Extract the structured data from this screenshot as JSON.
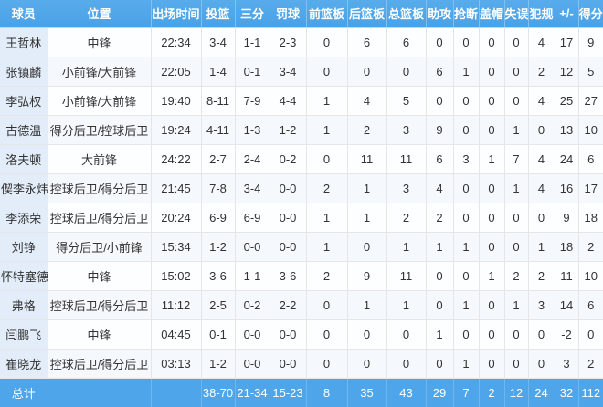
{
  "chart_data": {
    "type": "table",
    "columns": [
      "球员",
      "位置",
      "出场时间",
      "投篮",
      "三分",
      "罚球",
      "前篮板",
      "后篮板",
      "总篮板",
      "助攻",
      "抢断",
      "盖帽",
      "失误",
      "犯规",
      "+/-",
      "得分"
    ],
    "rows": [
      [
        "王哲林",
        "中锋",
        "22:34",
        "3-4",
        "1-1",
        "2-3",
        "0",
        "6",
        "6",
        "0",
        "0",
        "0",
        "0",
        "4",
        "17",
        "9"
      ],
      [
        "张镇麟",
        "小前锋/大前锋",
        "22:05",
        "1-4",
        "0-1",
        "3-4",
        "0",
        "0",
        "0",
        "6",
        "1",
        "0",
        "0",
        "2",
        "12",
        "5"
      ],
      [
        "李弘权",
        "小前锋/大前锋",
        "19:40",
        "8-11",
        "7-9",
        "4-4",
        "1",
        "4",
        "5",
        "0",
        "0",
        "0",
        "0",
        "4",
        "25",
        "27"
      ],
      [
        "古德温",
        "得分后卫/控球后卫",
        "19:24",
        "4-11",
        "1-3",
        "1-2",
        "1",
        "2",
        "3",
        "9",
        "0",
        "0",
        "1",
        "0",
        "13",
        "10"
      ],
      [
        "洛夫顿",
        "大前锋",
        "24:22",
        "2-7",
        "2-4",
        "0-2",
        "0",
        "11",
        "11",
        "6",
        "3",
        "1",
        "7",
        "4",
        "24",
        "6"
      ],
      [
        "偰李永炜",
        "控球后卫/得分后卫",
        "21:45",
        "7-8",
        "3-4",
        "0-0",
        "2",
        "1",
        "3",
        "4",
        "0",
        "0",
        "1",
        "4",
        "16",
        "17"
      ],
      [
        "李添荣",
        "控球后卫/得分后卫",
        "20:24",
        "6-9",
        "6-9",
        "0-0",
        "1",
        "1",
        "2",
        "2",
        "0",
        "0",
        "0",
        "0",
        "9",
        "18"
      ],
      [
        "刘铮",
        "得分后卫/小前锋",
        "15:34",
        "1-2",
        "0-0",
        "0-0",
        "1",
        "0",
        "1",
        "1",
        "1",
        "0",
        "0",
        "1",
        "18",
        "2"
      ],
      [
        "怀特塞德",
        "中锋",
        "15:02",
        "3-6",
        "1-1",
        "3-6",
        "2",
        "9",
        "11",
        "0",
        "0",
        "1",
        "2",
        "2",
        "11",
        "10"
      ],
      [
        "弗格",
        "控球后卫/得分后卫",
        "11:12",
        "2-5",
        "0-2",
        "2-2",
        "0",
        "1",
        "1",
        "0",
        "1",
        "0",
        "1",
        "3",
        "14",
        "6"
      ],
      [
        "闫鹏飞",
        "中锋",
        "04:45",
        "0-1",
        "0-0",
        "0-0",
        "0",
        "0",
        "0",
        "1",
        "0",
        "0",
        "0",
        "0",
        "-2",
        "0"
      ],
      [
        "崔晓龙",
        "控球后卫/得分后卫",
        "03:13",
        "1-2",
        "0-0",
        "0-0",
        "0",
        "0",
        "0",
        "0",
        "1",
        "0",
        "0",
        "0",
        "3",
        "2"
      ]
    ],
    "totals": [
      "总计",
      "",
      "",
      "38-70",
      "21-34",
      "15-23",
      "8",
      "35",
      "43",
      "29",
      "7",
      "2",
      "12",
      "24",
      "32",
      "112"
    ]
  },
  "colors": {
    "header_bg": "#4FA7E9",
    "totals_bg": "#4EA5E9",
    "name_column_bg": "#E3EDF9",
    "header_text": "#FFFFFF",
    "body_text": "#333333",
    "border": "#E5E6E8"
  }
}
